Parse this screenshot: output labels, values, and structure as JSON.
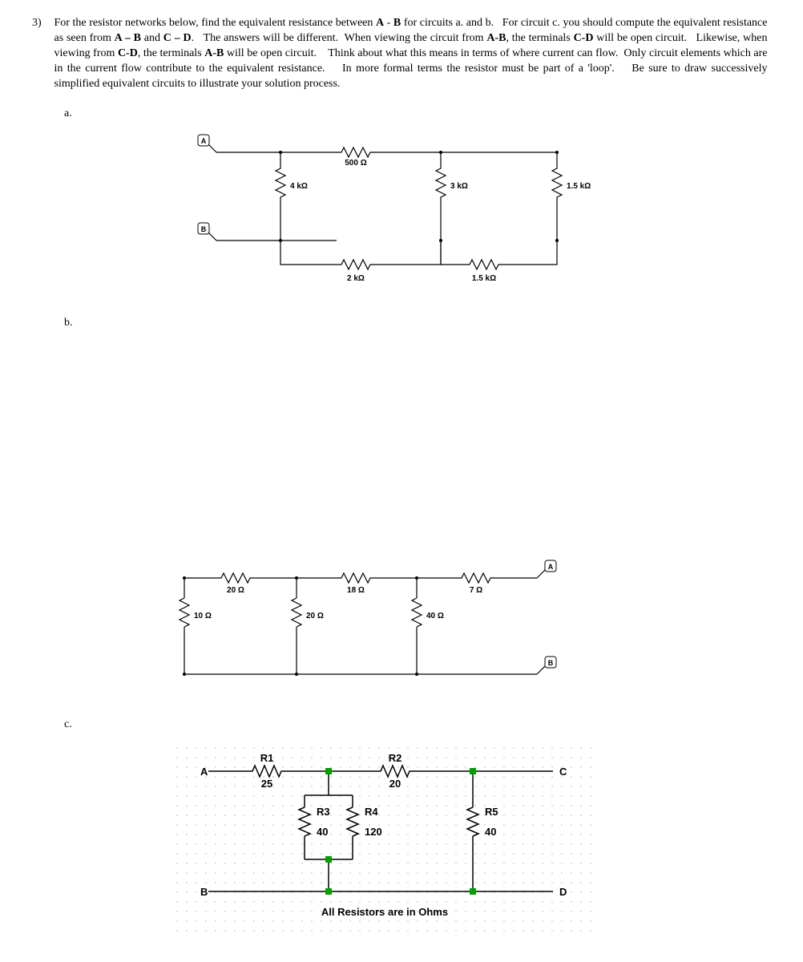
{
  "problem": {
    "number": "3)",
    "text": "For the resistor networks below, find the equivalent resistance between <b>A</b> - <b>B</b> for circuits a. and b.&nbsp;&nbsp;&nbsp;For circuit c. you should compute the equivalent resistance as seen from <b>A – B</b> and <b>C – D</b>.&nbsp;&nbsp;&nbsp;The answers will be different.&nbsp;&nbsp;When viewing the circuit from <b>A-B</b>, the terminals <b>C-D</b> will be open circuit.&nbsp;&nbsp;&nbsp;Likewise, when viewing from <b>C-D</b>, the terminals <b>A-B</b> will be open circuit.&nbsp;&nbsp;&nbsp;&nbsp;Think about what this means in terms of where current can flow.&nbsp;&nbsp;Only circuit elements which are in the current flow contribute to the equivalent resistance.&nbsp;&nbsp;&nbsp;&nbsp;In more formal terms the resistor must be part of a 'loop'.&nbsp;&nbsp;&nbsp;&nbsp;Be sure to draw successively simplified equivalent circuits to illustrate your solution process."
  },
  "labels": {
    "a": "a.",
    "b": "b.",
    "c": "c."
  },
  "circuit_a": {
    "R500": "500 Ω",
    "R4k": "4 kΩ",
    "R3k": "3 kΩ",
    "R15k_v": "1.5 kΩ",
    "R2k": "2 kΩ",
    "R15k_h": "1.5 kΩ",
    "term_A": "A",
    "term_B": "B"
  },
  "circuit_b": {
    "R20h": "20 Ω",
    "R18": "18 Ω",
    "R7": "7 Ω",
    "R10": "10 Ω",
    "R20v": "20 Ω",
    "R40": "40 Ω",
    "term_A": "A",
    "term_B": "B"
  },
  "circuit_c": {
    "A": "A",
    "B": "B",
    "C": "C",
    "D": "D",
    "R1_name": "R1",
    "R1_val": "25",
    "R2_name": "R2",
    "R2_val": "20",
    "R3_name": "R3",
    "R3_val": "40",
    "R4_name": "R4",
    "R4_val": "120",
    "R5_name": "R5",
    "R5_val": "40",
    "caption": "All Resistors are in Ohms",
    "grid_color": "#d0d0d0",
    "node_color": "#00a000"
  }
}
